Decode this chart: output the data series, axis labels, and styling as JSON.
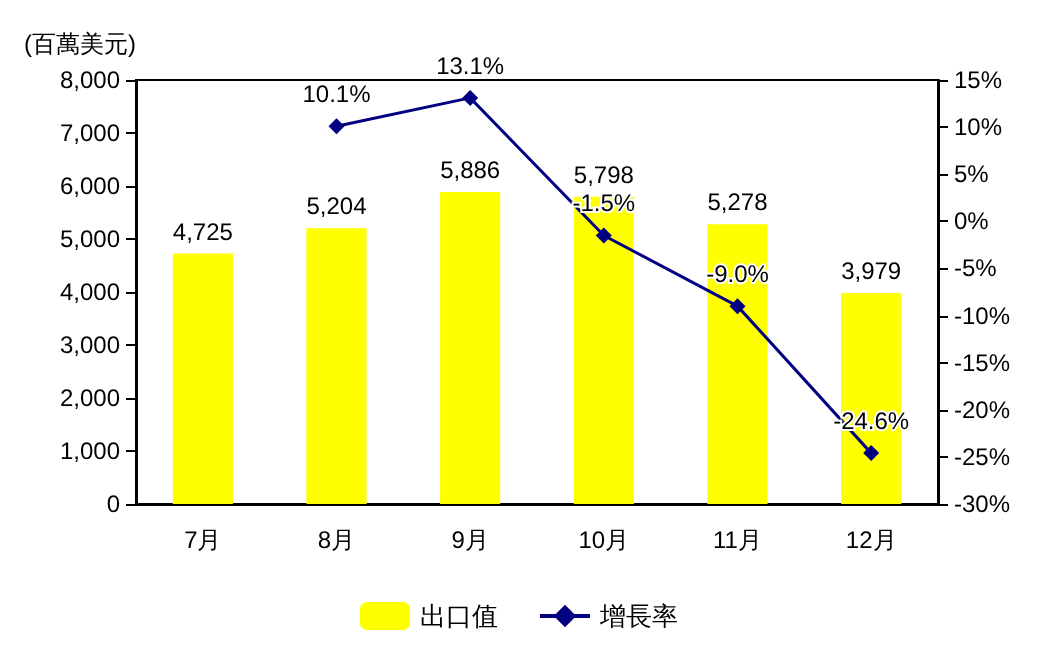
{
  "chart_data": {
    "type": "bar",
    "ylabel": "(百萬美元)",
    "categories": [
      "7月",
      "8月",
      "9月",
      "10月",
      "11月",
      "12月"
    ],
    "series": [
      {
        "name": "出口值",
        "color": "#ffff00",
        "values": [
          4725,
          5204,
          5886,
          5798,
          5278,
          3979
        ],
        "value_labels": [
          "4,725",
          "5,204",
          "5,886",
          "5,798",
          "5,278",
          "3,979"
        ]
      },
      {
        "name": "增長率",
        "type": "line",
        "axis": "y2",
        "color": "#000080",
        "marker": "diamond",
        "values": [
          null,
          10.1,
          13.1,
          -1.5,
          -9.0,
          -24.6
        ],
        "value_labels": [
          null,
          "10.1%",
          "13.1%",
          "-1.5%",
          "-9.0%",
          "-24.6%"
        ]
      }
    ],
    "ylim": [
      0,
      8000
    ],
    "yticks": [
      {
        "value": 0,
        "label": "0"
      },
      {
        "value": 1000,
        "label": "1,000"
      },
      {
        "value": 2000,
        "label": "2,000"
      },
      {
        "value": 3000,
        "label": "3,000"
      },
      {
        "value": 4000,
        "label": "4,000"
      },
      {
        "value": 5000,
        "label": "5,000"
      },
      {
        "value": 6000,
        "label": "6,000"
      },
      {
        "value": 7000,
        "label": "7,000"
      },
      {
        "value": 8000,
        "label": "8,000"
      }
    ],
    "y2lim": [
      -30,
      15
    ],
    "y2ticks": [
      {
        "value": -30,
        "label": "-30%"
      },
      {
        "value": -25,
        "label": "-25%"
      },
      {
        "value": -20,
        "label": "-20%"
      },
      {
        "value": -15,
        "label": "-15%"
      },
      {
        "value": -10,
        "label": "-10%"
      },
      {
        "value": -5,
        "label": "-5%"
      },
      {
        "value": 0,
        "label": "0%"
      },
      {
        "value": 5,
        "label": "5%"
      },
      {
        "value": 10,
        "label": "10%"
      },
      {
        "value": 15,
        "label": "15%"
      }
    ],
    "grid": false,
    "legend": "bottom"
  }
}
